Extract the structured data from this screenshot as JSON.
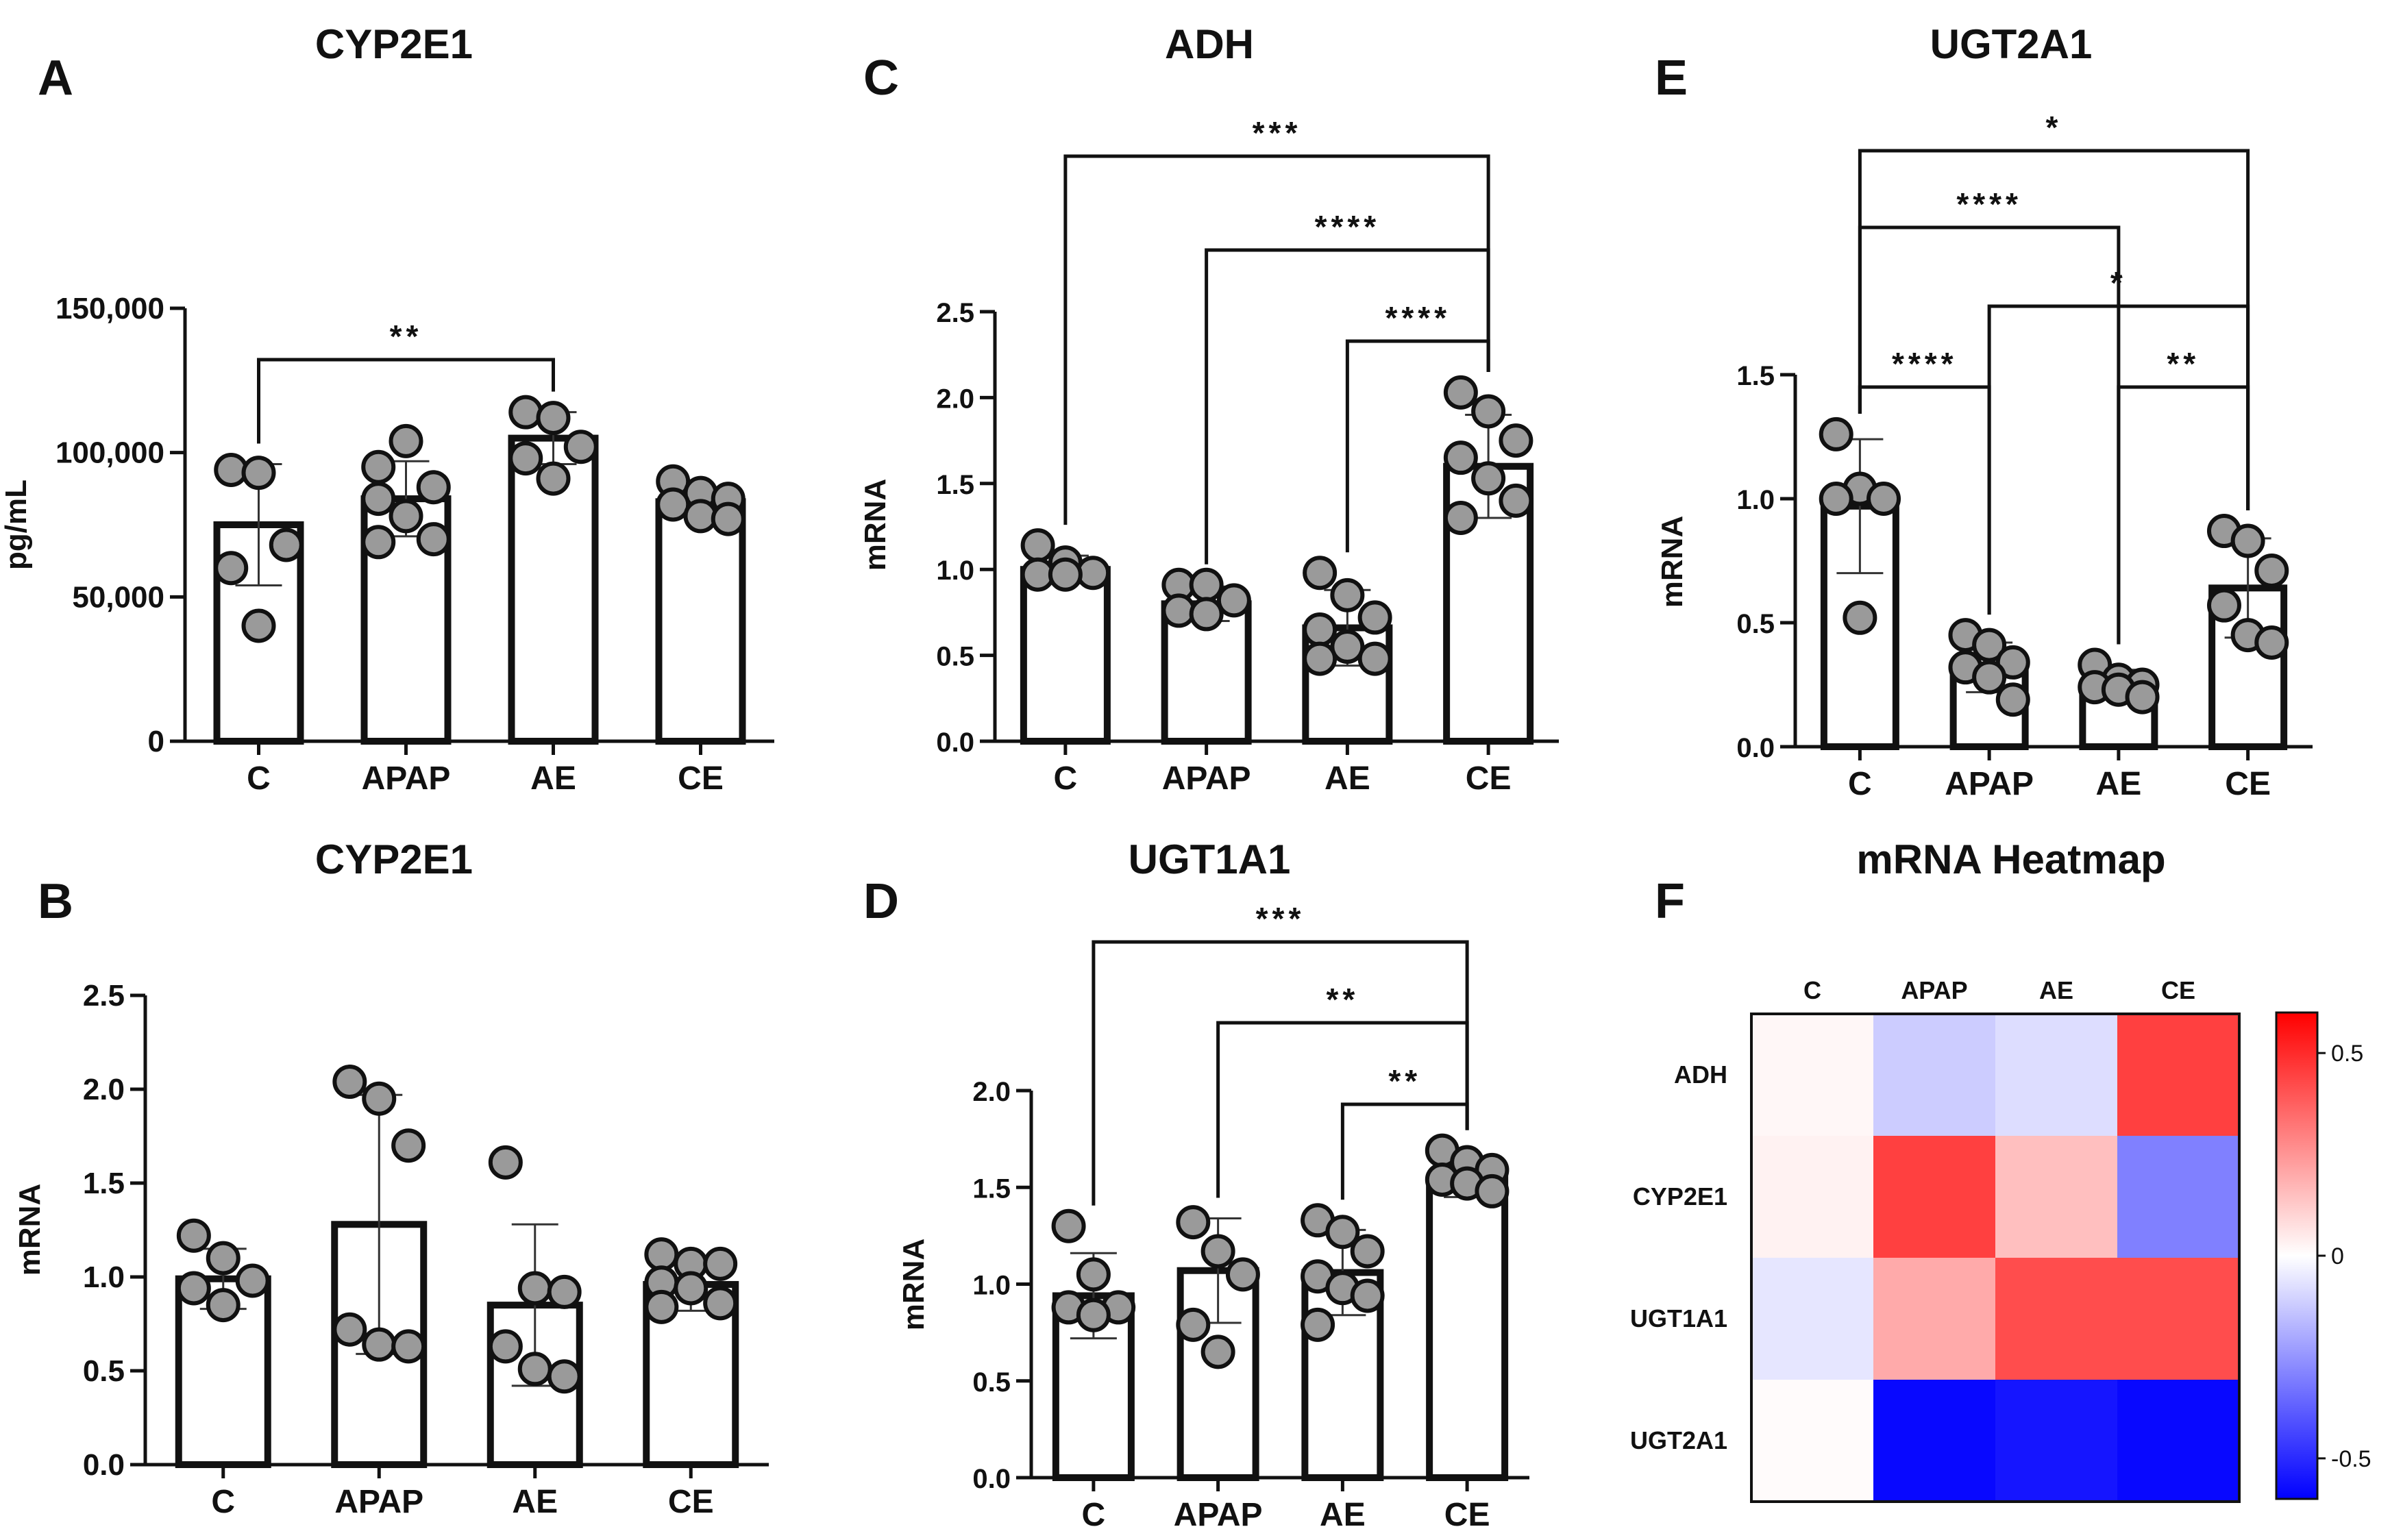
{
  "chart_data": [
    {
      "id": "A",
      "panel_label": "A",
      "type": "bar",
      "title": "CYP2E1",
      "ylabel": "pg/mL",
      "xlabel": "",
      "categories": [
        "C",
        "APAP",
        "AE",
        "CE"
      ],
      "values": [
        75000,
        84000,
        105000,
        83000
      ],
      "sd": [
        21000,
        13000,
        9000,
        5000
      ],
      "points": [
        [
          94000,
          93000,
          68000,
          60000,
          40000
        ],
        [
          95000,
          104000,
          88000,
          84000,
          78000,
          70000,
          69000
        ],
        [
          114000,
          112000,
          102000,
          98000,
          91000
        ],
        [
          90000,
          86000,
          84000,
          82000,
          78000,
          77000
        ]
      ],
      "ylim": [
        0,
        150000
      ],
      "yticks": [
        0,
        50000,
        100000,
        150000
      ],
      "ytick_labels": [
        "0",
        "50,000",
        "100,000",
        "150,000"
      ],
      "significance": [
        {
          "from": "C",
          "to": "AE",
          "label": "**"
        }
      ]
    },
    {
      "id": "B",
      "panel_label": "B",
      "type": "bar",
      "title": "CYP2E1",
      "ylabel": "mRNA",
      "xlabel": "",
      "categories": [
        "C",
        "APAP",
        "AE",
        "CE"
      ],
      "values": [
        0.99,
        1.28,
        0.85,
        0.96
      ],
      "sd": [
        0.16,
        0.69,
        0.43,
        0.14
      ],
      "points": [
        [
          1.22,
          1.1,
          0.98,
          0.94,
          0.85
        ],
        [
          2.04,
          1.95,
          1.7,
          0.72,
          0.64,
          0.63
        ],
        [
          1.61,
          0.94,
          0.92,
          0.63,
          0.51,
          0.47
        ],
        [
          1.12,
          1.07,
          1.07,
          0.97,
          0.94,
          0.86,
          0.84
        ]
      ],
      "ylim": [
        0,
        2.5
      ],
      "yticks": [
        0,
        0.5,
        1.0,
        1.5,
        2.0,
        2.5
      ],
      "ytick_labels": [
        "0.0",
        "0.5",
        "1.0",
        "1.5",
        "2.0",
        "2.5"
      ],
      "significance": []
    },
    {
      "id": "C",
      "panel_label": "C",
      "type": "bar",
      "title": "ADH",
      "ylabel": "mRNA",
      "xlabel": "",
      "categories": [
        "C",
        "APAP",
        "AE",
        "CE"
      ],
      "values": [
        1.0,
        0.8,
        0.66,
        1.6
      ],
      "sd": [
        0.08,
        0.1,
        0.22,
        0.3
      ],
      "points": [
        [
          1.14,
          1.04,
          0.98,
          0.97,
          0.97
        ],
        [
          0.91,
          0.91,
          0.82,
          0.76,
          0.74
        ],
        [
          0.98,
          0.85,
          0.72,
          0.65,
          0.55,
          0.48,
          0.48
        ],
        [
          2.03,
          1.92,
          1.75,
          1.65,
          1.53,
          1.4,
          1.3
        ]
      ],
      "ylim": [
        0,
        2.5
      ],
      "yticks": [
        0,
        0.5,
        1.0,
        1.5,
        2.0,
        2.5
      ],
      "ytick_labels": [
        "0.0",
        "0.5",
        "1.0",
        "1.5",
        "2.0",
        "2.5"
      ],
      "significance": [
        {
          "from": "C",
          "to": "CE",
          "label": "***"
        },
        {
          "from": "APAP",
          "to": "CE",
          "label": "****"
        },
        {
          "from": "AE",
          "to": "CE",
          "label": "****"
        }
      ]
    },
    {
      "id": "D",
      "panel_label": "D",
      "type": "bar",
      "title": "UGT1A1",
      "ylabel": "mRNA",
      "xlabel": "",
      "categories": [
        "C",
        "APAP",
        "AE",
        "CE"
      ],
      "values": [
        0.94,
        1.07,
        1.06,
        1.55
      ],
      "sd": [
        0.22,
        0.27,
        0.22,
        0.1
      ],
      "points": [
        [
          1.3,
          1.05,
          0.88,
          0.88,
          0.84
        ],
        [
          1.32,
          1.17,
          1.05,
          0.79,
          0.65
        ],
        [
          1.33,
          1.27,
          1.17,
          1.04,
          0.98,
          0.94,
          0.79
        ],
        [
          1.69,
          1.63,
          1.59,
          1.54,
          1.52,
          1.48
        ]
      ],
      "ylim": [
        0,
        2.0
      ],
      "yticks": [
        0,
        0.5,
        1.0,
        1.5,
        2.0
      ],
      "ytick_labels": [
        "0.0",
        "0.5",
        "1.0",
        "1.5",
        "2.0"
      ],
      "significance": [
        {
          "from": "C",
          "to": "CE",
          "label": "***"
        },
        {
          "from": "APAP",
          "to": "CE",
          "label": "**"
        },
        {
          "from": "AE",
          "to": "CE",
          "label": "**"
        }
      ]
    },
    {
      "id": "E",
      "panel_label": "E",
      "type": "bar",
      "title": "UGT2A1",
      "ylabel": "mRNA",
      "xlabel": "",
      "categories": [
        "C",
        "APAP",
        "AE",
        "CE"
      ],
      "values": [
        0.97,
        0.32,
        0.25,
        0.64
      ],
      "sd": [
        0.27,
        0.1,
        0.06,
        0.2
      ],
      "points": [
        [
          1.26,
          1.04,
          1.0,
          1.0,
          0.52
        ],
        [
          0.45,
          0.41,
          0.34,
          0.32,
          0.28,
          0.19
        ],
        [
          0.33,
          0.27,
          0.25,
          0.24,
          0.23,
          0.2
        ],
        [
          0.87,
          0.83,
          0.71,
          0.57,
          0.45,
          0.42
        ]
      ],
      "ylim": [
        0,
        1.5
      ],
      "yticks": [
        0,
        0.5,
        1.0,
        1.5
      ],
      "ytick_labels": [
        "0.0",
        "0.5",
        "1.0",
        "1.5"
      ],
      "significance": [
        {
          "from": "C",
          "to": "CE",
          "label": "*"
        },
        {
          "from": "C",
          "to": "AE",
          "label": "****"
        },
        {
          "from": "APAP",
          "to": "CE",
          "label": "*"
        },
        {
          "from": "C",
          "to": "APAP",
          "label": "****"
        },
        {
          "from": "AE",
          "to": "CE",
          "label": "**"
        }
      ]
    },
    {
      "id": "F",
      "panel_label": "F",
      "type": "heatmap",
      "title": "mRNA Heatmap",
      "columns": [
        "C",
        "APAP",
        "AE",
        "CE"
      ],
      "rows": [
        "ADH",
        "CYP2E1",
        "UGT1A1",
        "UGT2A1"
      ],
      "values": [
        [
          0.02,
          -0.12,
          -0.08,
          0.45
        ],
        [
          0.03,
          0.45,
          0.15,
          -0.3
        ],
        [
          -0.06,
          0.2,
          0.42,
          0.42
        ],
        [
          0.01,
          -0.58,
          -0.55,
          -0.58
        ]
      ],
      "colorbar": {
        "min": -0.6,
        "max": 0.6,
        "ticks": [
          0.5,
          0,
          -0.5
        ],
        "tick_labels": [
          "0.5",
          "0",
          "-0.5"
        ],
        "low_color": "#0000ff",
        "mid_color": "#ffffff",
        "high_color": "#ff0000"
      }
    }
  ]
}
